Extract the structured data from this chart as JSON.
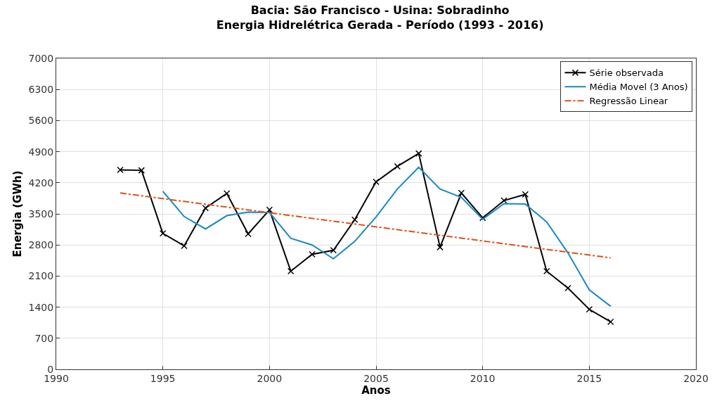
{
  "chart_data": {
    "type": "line",
    "title": "Bacia: São Francisco - Usina: Sobradinho\nEnergia Hidrelétrica Gerada - Período (1993 - 2016)",
    "xlabel": "Anos",
    "ylabel": "Energia (GWh)",
    "xlim": [
      1990,
      2020
    ],
    "xticks": [
      1990,
      1995,
      2000,
      2005,
      2010,
      2015,
      2020
    ],
    "ylim": [
      0,
      7000
    ],
    "yticks": [
      0,
      700,
      1400,
      2100,
      2800,
      3500,
      4200,
      4900,
      5600,
      6300,
      7000
    ],
    "grid": true,
    "legend": "top right",
    "series": [
      {
        "name": "Série observada",
        "color": "#000000",
        "marker": "cross",
        "line_style": "solid",
        "x": [
          1993,
          1994,
          1995,
          1996,
          1997,
          1998,
          1999,
          2000,
          2001,
          2002,
          2003,
          2004,
          2005,
          2006,
          2007,
          2008,
          2009,
          2010,
          2011,
          2012,
          2013,
          2014,
          2015,
          2016
        ],
        "values": [
          4490,
          4480,
          3060,
          2780,
          3630,
          3960,
          3050,
          3590,
          2210,
          2590,
          2680,
          3370,
          4220,
          4570,
          4860,
          2750,
          3970,
          3410,
          3800,
          3940,
          2210,
          1830,
          1350,
          1070
        ]
      },
      {
        "name": "Média Movel (3 Anos)",
        "color": "#1a8ac0",
        "marker": "none",
        "line_style": "solid",
        "x": [
          1995,
          1996,
          1997,
          1998,
          1999,
          2000,
          2001,
          2002,
          2003,
          2004,
          2005,
          2006,
          2007,
          2008,
          2009,
          2010,
          2011,
          2012,
          2013,
          2014,
          2015,
          2016
        ],
        "values": [
          4010,
          3440,
          3160,
          3460,
          3540,
          3530,
          2950,
          2800,
          2490,
          2880,
          3430,
          4060,
          4550,
          4060,
          3870,
          3380,
          3730,
          3720,
          3320,
          2620,
          1790,
          1420
        ]
      },
      {
        "name": "Regressão Linear",
        "color": "#d95319",
        "marker": "none",
        "line_style": "dashdot",
        "x": [
          1993,
          2016
        ],
        "values": [
          3970,
          2510
        ]
      }
    ]
  }
}
